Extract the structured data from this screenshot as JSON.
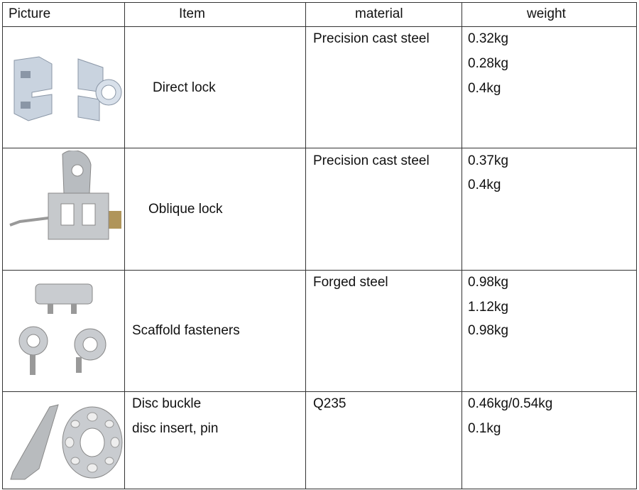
{
  "headers": {
    "picture": "Picture",
    "item": "Item",
    "material": "material",
    "weight": "weight"
  },
  "rows": [
    {
      "item": [
        "Direct lock"
      ],
      "material": "Precision cast steel",
      "weights": [
        "0.32kg",
        "0.28kg",
        "0.4kg"
      ],
      "picture_icon": "direct-lock-image"
    },
    {
      "item": [
        "Oblique lock"
      ],
      "material": "Precision cast steel",
      "weights": [
        "0.37kg",
        "0.4kg"
      ],
      "picture_icon": "oblique-lock-image"
    },
    {
      "item": [
        "Scaffold fasteners"
      ],
      "material": "Forged steel",
      "weights": [
        "0.98kg",
        "1.12kg",
        "0.98kg"
      ],
      "picture_icon": "scaffold-fasteners-image"
    },
    {
      "item": [
        "Disc buckle",
        "disc insert, pin"
      ],
      "material": "Q235",
      "weights": [
        "0.46kg/0.54kg",
        "0.1kg"
      ],
      "picture_icon": "disc-buckle-image"
    }
  ]
}
